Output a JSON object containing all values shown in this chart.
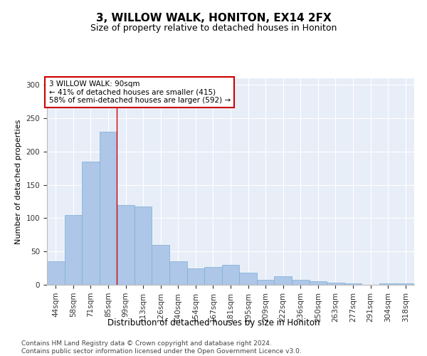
{
  "title": "3, WILLOW WALK, HONITON, EX14 2FX",
  "subtitle": "Size of property relative to detached houses in Honiton",
  "xlabel": "Distribution of detached houses by size in Honiton",
  "ylabel": "Number of detached properties",
  "categories": [
    "44sqm",
    "58sqm",
    "71sqm",
    "85sqm",
    "99sqm",
    "113sqm",
    "126sqm",
    "140sqm",
    "154sqm",
    "167sqm",
    "181sqm",
    "195sqm",
    "209sqm",
    "222sqm",
    "236sqm",
    "250sqm",
    "263sqm",
    "277sqm",
    "291sqm",
    "304sqm",
    "318sqm"
  ],
  "values": [
    35,
    105,
    185,
    230,
    120,
    118,
    60,
    35,
    25,
    27,
    30,
    18,
    7,
    13,
    8,
    5,
    3,
    2,
    0,
    2,
    2
  ],
  "bar_color": "#aec6e8",
  "bar_edge_color": "#7aafd4",
  "vline_x_index": 3.5,
  "vline_color": "#cc0000",
  "annotation_text": "3 WILLOW WALK: 90sqm\n← 41% of detached houses are smaller (415)\n58% of semi-detached houses are larger (592) →",
  "annotation_box_color": "white",
  "annotation_box_edge": "#cc0000",
  "ylim": [
    0,
    310
  ],
  "yticks": [
    0,
    50,
    100,
    150,
    200,
    250,
    300
  ],
  "bg_color": "#e8eef8",
  "footer": "Contains HM Land Registry data © Crown copyright and database right 2024.\nContains public sector information licensed under the Open Government Licence v3.0.",
  "title_fontsize": 11,
  "subtitle_fontsize": 9,
  "xlabel_fontsize": 8.5,
  "ylabel_fontsize": 8,
  "tick_fontsize": 7.5,
  "footer_fontsize": 6.5,
  "ann_fontsize": 7.5
}
